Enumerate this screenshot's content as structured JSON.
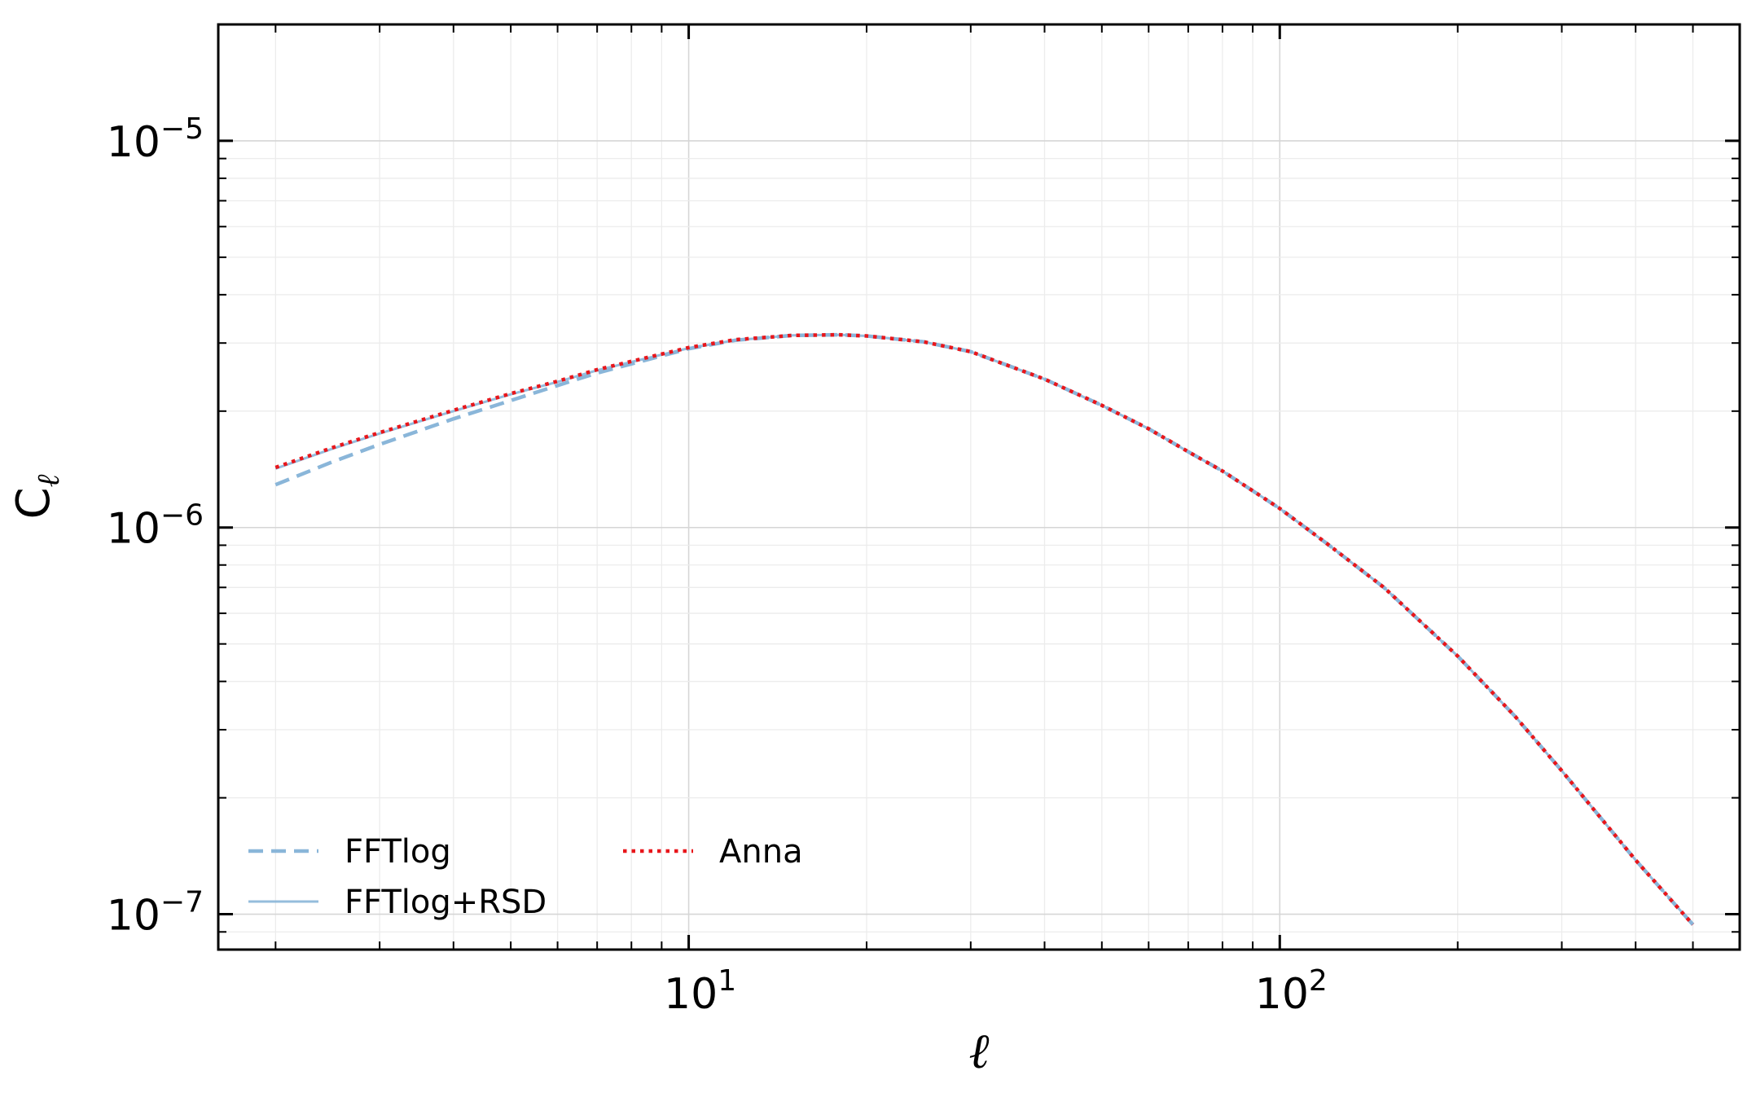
{
  "chart_data": {
    "type": "line",
    "xscale": "log",
    "yscale": "log",
    "xlim": [
      1.6,
      600
    ],
    "ylim": [
      8.1e-08,
      2e-05
    ],
    "xlabel": "ℓ",
    "ylabel": "C",
    "ylabel_subscript": "ℓ",
    "grid": true,
    "legend_position": "lower-left",
    "x_ticks": [
      {
        "base": "10",
        "exp": "1",
        "value": 10
      },
      {
        "base": "10",
        "exp": "2",
        "value": 100
      }
    ],
    "y_ticks": [
      {
        "base": "10",
        "exp": "−5",
        "value": 1e-05
      },
      {
        "base": "10",
        "exp": "−6",
        "value": 1e-06
      },
      {
        "base": "10",
        "exp": "−7",
        "value": 1e-07
      }
    ],
    "series": [
      {
        "name": "FFTlog",
        "style": "dashed",
        "color": "#8ab6d9",
        "x": [
          2,
          2.5,
          3,
          4,
          5,
          6,
          7,
          8,
          10,
          12,
          15,
          18,
          20,
          25,
          30,
          40,
          50,
          60,
          70,
          80,
          100,
          120,
          150,
          200,
          250,
          300,
          400,
          500
        ],
        "y": [
          1.29e-06,
          1.48e-06,
          1.64e-06,
          1.91e-06,
          2.13e-06,
          2.33e-06,
          2.51e-06,
          2.65e-06,
          2.9e-06,
          3.05e-06,
          3.14e-06,
          3.15e-06,
          3.13e-06,
          3.02e-06,
          2.85e-06,
          2.42e-06,
          2.07e-06,
          1.8e-06,
          1.57e-06,
          1.4e-06,
          1.12e-06,
          9.1e-07,
          7e-07,
          4.65e-07,
          3.25e-07,
          2.35e-07,
          1.38e-07,
          9.4e-08
        ]
      },
      {
        "name": "FFTlog+RSD",
        "style": "solid",
        "color": "#8ab6d9",
        "x": [
          2,
          2.5,
          3,
          4,
          5,
          6,
          7,
          8,
          10,
          12,
          15,
          18,
          20,
          25,
          30,
          40,
          50,
          60,
          70,
          80,
          100,
          120,
          150,
          200,
          250,
          300,
          400,
          500
        ],
        "y": [
          1.42e-06,
          1.6e-06,
          1.75e-06,
          2e-06,
          2.21e-06,
          2.38e-06,
          2.55e-06,
          2.68e-06,
          2.91e-06,
          3.05e-06,
          3.14e-06,
          3.15e-06,
          3.13e-06,
          3.02e-06,
          2.85e-06,
          2.42e-06,
          2.07e-06,
          1.8e-06,
          1.57e-06,
          1.4e-06,
          1.12e-06,
          9.1e-07,
          7e-07,
          4.65e-07,
          3.25e-07,
          2.35e-07,
          1.38e-07,
          9.4e-08
        ]
      },
      {
        "name": "Anna",
        "style": "dotted",
        "color": "#e8161b",
        "x": [
          2,
          2.5,
          3,
          4,
          5,
          6,
          7,
          8,
          10,
          12,
          15,
          18,
          20,
          25,
          30,
          40,
          50,
          60,
          70,
          80,
          100,
          120,
          150,
          200,
          250,
          300,
          400,
          500
        ],
        "y": [
          1.43e-06,
          1.61e-06,
          1.76e-06,
          2.01e-06,
          2.22e-06,
          2.39e-06,
          2.56e-06,
          2.69e-06,
          2.92e-06,
          3.06e-06,
          3.14e-06,
          3.15e-06,
          3.13e-06,
          3.02e-06,
          2.85e-06,
          2.42e-06,
          2.07e-06,
          1.8e-06,
          1.57e-06,
          1.4e-06,
          1.12e-06,
          9.1e-07,
          7e-07,
          4.65e-07,
          3.25e-07,
          2.35e-07,
          1.38e-07,
          9.4e-08
        ]
      }
    ]
  }
}
